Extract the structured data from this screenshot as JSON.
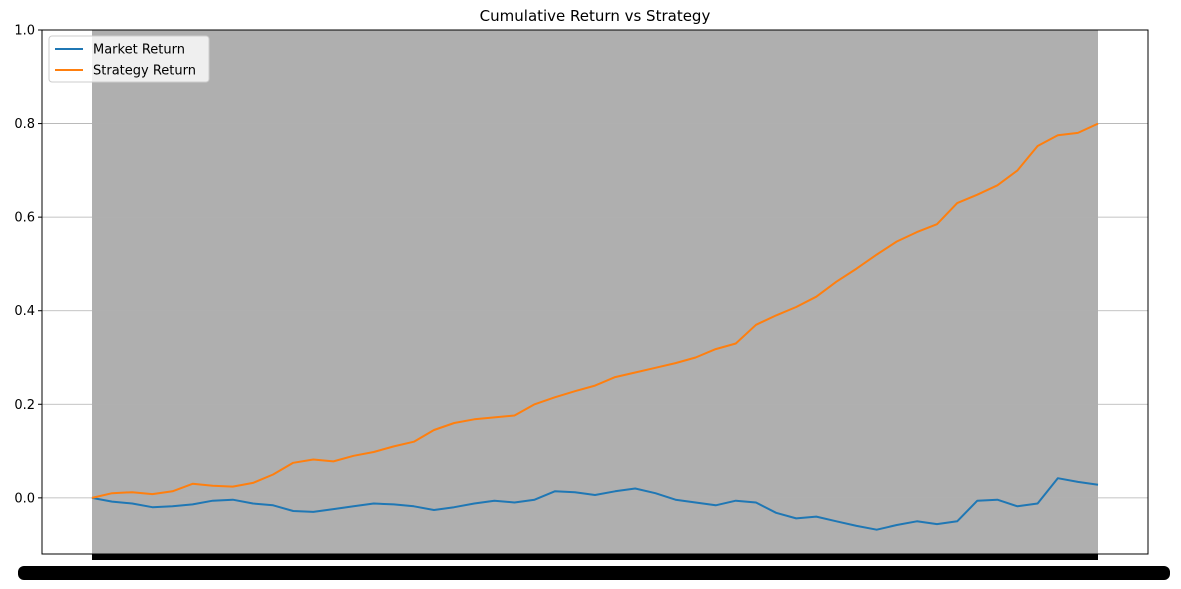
{
  "chart_data": {
    "type": "line",
    "title": "Cumulative Return vs Strategy",
    "xlabel": "",
    "ylabel": "",
    "ylim": [
      -0.12,
      1.0
    ],
    "yticks": [
      0.0,
      0.2,
      0.4,
      0.6,
      0.8,
      1.0
    ],
    "ytick_labels": [
      "0.0",
      "0.2",
      "0.4",
      "0.6",
      "0.8",
      "1.0"
    ],
    "grid": "y",
    "legend_position": "upper-left",
    "x_tick_labels_overlapping": true,
    "series": [
      {
        "name": "Market Return",
        "color": "#1f77b4",
        "x": [
          0,
          2,
          4,
          6,
          8,
          10,
          12,
          14,
          16,
          18,
          20,
          22,
          24,
          26,
          28,
          30,
          32,
          34,
          36,
          38,
          40,
          42,
          44,
          46,
          48,
          50,
          52,
          54,
          56,
          58,
          60,
          62,
          64,
          66,
          68,
          70,
          72,
          74,
          76,
          78,
          80,
          82,
          84,
          86,
          88,
          90,
          92,
          94,
          96,
          98,
          100
        ],
        "values": [
          0.0,
          -0.008,
          -0.012,
          -0.02,
          -0.018,
          -0.014,
          -0.006,
          -0.004,
          -0.012,
          -0.016,
          -0.028,
          -0.03,
          -0.024,
          -0.018,
          -0.012,
          -0.014,
          -0.018,
          -0.026,
          -0.02,
          -0.012,
          -0.006,
          -0.01,
          -0.004,
          0.014,
          0.012,
          0.006,
          0.014,
          0.02,
          0.01,
          -0.004,
          -0.01,
          -0.016,
          -0.006,
          -0.01,
          -0.032,
          -0.044,
          -0.04,
          -0.05,
          -0.06,
          -0.068,
          -0.058,
          -0.05,
          -0.056,
          -0.05,
          -0.006,
          -0.004,
          -0.018,
          -0.012,
          0.042,
          0.034,
          0.028
        ]
      },
      {
        "name": "Strategy Return",
        "color": "#ff7f0e",
        "x": [
          0,
          2,
          4,
          6,
          8,
          10,
          12,
          14,
          16,
          18,
          20,
          22,
          24,
          26,
          28,
          30,
          32,
          34,
          36,
          38,
          40,
          42,
          44,
          46,
          48,
          50,
          52,
          54,
          56,
          58,
          60,
          62,
          64,
          66,
          68,
          70,
          72,
          74,
          76,
          78,
          80,
          82,
          84,
          86,
          88,
          90,
          92,
          94,
          96,
          98,
          100
        ],
        "values": [
          0.0,
          0.01,
          0.012,
          0.008,
          0.014,
          0.03,
          0.026,
          0.024,
          0.032,
          0.05,
          0.075,
          0.082,
          0.078,
          0.09,
          0.098,
          0.11,
          0.12,
          0.145,
          0.16,
          0.168,
          0.172,
          0.176,
          0.2,
          0.215,
          0.228,
          0.24,
          0.258,
          0.268,
          0.278,
          0.288,
          0.3,
          0.318,
          0.33,
          0.37,
          0.39,
          0.408,
          0.43,
          0.462,
          0.49,
          0.52,
          0.548,
          0.568,
          0.585,
          0.63,
          0.648,
          0.668,
          0.7,
          0.752,
          0.775,
          0.78,
          0.8
        ]
      }
    ]
  }
}
